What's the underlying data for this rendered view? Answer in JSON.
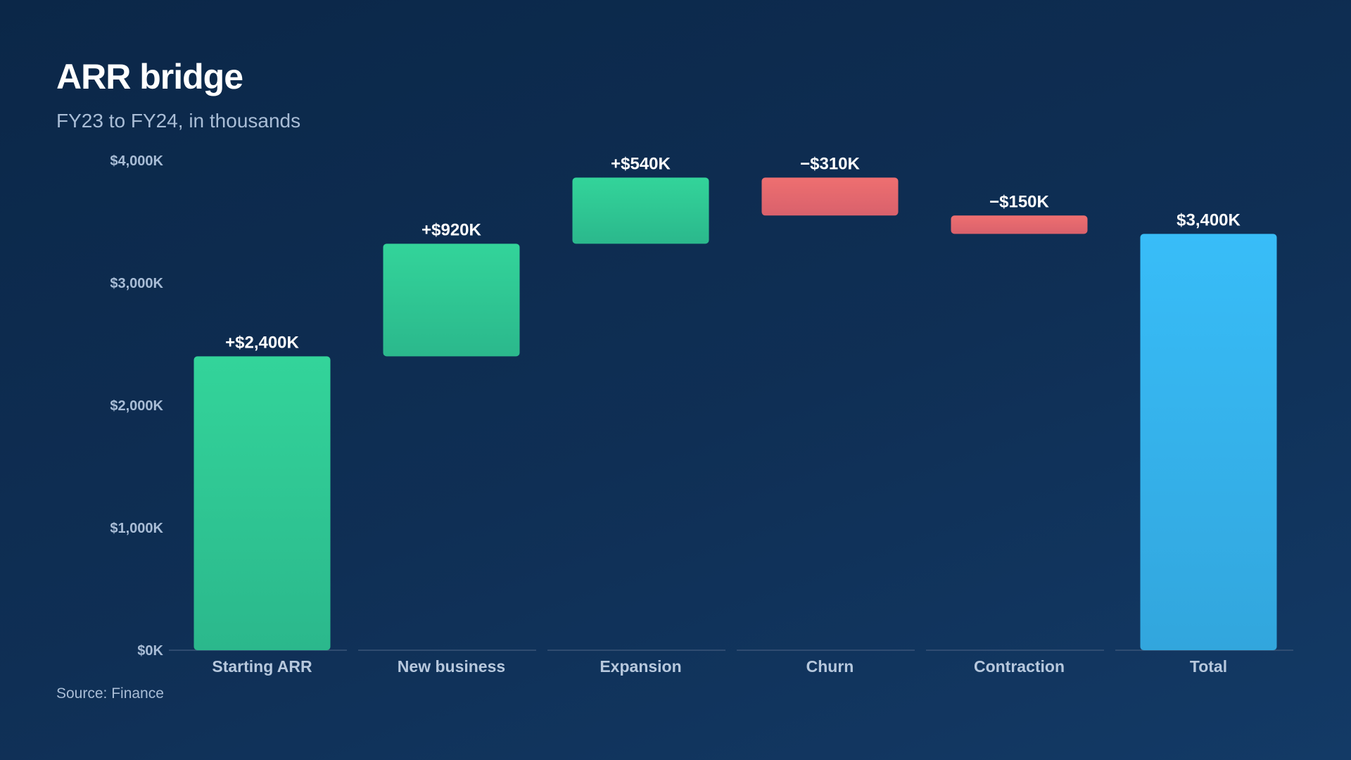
{
  "title": "ARR bridge",
  "subtitle": "FY23 to FY24, in thousands",
  "source": "Source: Finance",
  "colors": {
    "increase": "#2ecc94",
    "decrease": "#e96a6e",
    "total": "#36b6f0",
    "baseline": "#3a5578"
  },
  "chart_data": {
    "type": "bar",
    "subtype": "waterfall",
    "categories": [
      "Starting ARR",
      "New business",
      "Expansion",
      "Churn",
      "Contraction",
      "Total"
    ],
    "values": [
      2400,
      920,
      540,
      -310,
      -150,
      3400
    ],
    "kinds": [
      "increase",
      "increase",
      "increase",
      "decrease",
      "decrease",
      "total"
    ],
    "data_labels": [
      "+$2,400K",
      "+$920K",
      "+$540K",
      "−$310K",
      "−$150K",
      "$3,400K"
    ],
    "yticks": [
      0,
      1000,
      2000,
      3000,
      4000
    ],
    "ytick_labels": [
      "$0K",
      "$1,000K",
      "$2,000K",
      "$3,000K",
      "$4,000K"
    ],
    "ylim": [
      0,
      4000
    ],
    "grid": false,
    "legend": "none"
  }
}
